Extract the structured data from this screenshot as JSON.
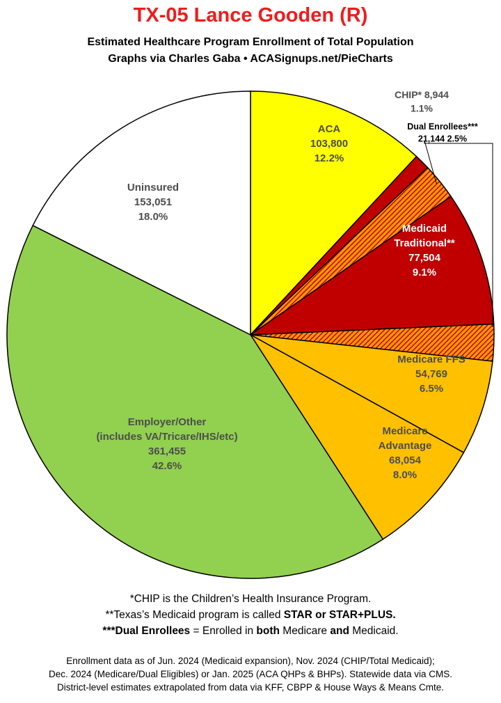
{
  "header": {
    "title": "TX-05 Lance Gooden (R)",
    "subtitle_line1": "Estimated Healthcare Program Enrollment of Total Population",
    "subtitle_line2": "Graphs via Charles Gaba  •  ACASignups.net/PieCharts"
  },
  "chart_data": {
    "type": "pie",
    "title": "TX-05 Lance Gooden (R)",
    "start": "12 o'clock",
    "direction": "clockwise",
    "slices": [
      {
        "id": "aca",
        "label_lines": [
          "ACA"
        ],
        "value": 103800,
        "value_text": "103,800",
        "percent": 12.2,
        "percent_text": "12.2%",
        "color": "#ffff00",
        "text_color": "#4d4d4d"
      },
      {
        "id": "chip",
        "label_lines": [
          "CHIP* 8,944",
          "1.1%"
        ],
        "value": 8944,
        "value_text": "8,944",
        "percent": 1.1,
        "percent_text": "1.1%",
        "color": "#c00000",
        "text_color": "#4d4d4d"
      },
      {
        "id": "dual",
        "label_lines": [
          "Dual Enrollees***",
          "21,144 2.5%"
        ],
        "value": 21144,
        "value_text": "21,144",
        "percent": 2.5,
        "percent_text": "2.5%",
        "color": "#c00000",
        "pattern": "hatched",
        "text_color": "#000000"
      },
      {
        "id": "medicaid",
        "label_lines": [
          "Medicaid",
          "Traditional**"
        ],
        "value": 77504,
        "value_text": "77,504",
        "percent": 9.1,
        "percent_text": "9.1%",
        "color": "#c00000",
        "text_color": "#ffffff"
      },
      {
        "id": "dual_hatch",
        "label_lines": [],
        "value": 21144,
        "value_text": "",
        "percent": 2.5,
        "percent_text": "",
        "color": "#c00000",
        "pattern": "hatched",
        "text_color": "#000000"
      },
      {
        "id": "mcare_ffs",
        "label_lines": [
          "Medicare FFS"
        ],
        "value": 54769,
        "value_text": "54,769",
        "percent": 6.5,
        "percent_text": "6.5%",
        "color": "#ffc000",
        "text_color": "#4d4d4d"
      },
      {
        "id": "mcare_adv",
        "label_lines": [
          "Medicare",
          "Advantage"
        ],
        "value": 68054,
        "value_text": "68,054",
        "percent": 8.0,
        "percent_text": "8.0%",
        "color": "#ffc000",
        "text_color": "#4d4d4d"
      },
      {
        "id": "employer",
        "label_lines": [
          "Employer/Other",
          "(includes VA/Tricare/IHS/etc)"
        ],
        "value": 361455,
        "value_text": "361,455",
        "percent": 42.6,
        "percent_text": "42.6%",
        "color": "#92d050",
        "text_color": "#4d4d4d"
      },
      {
        "id": "uninsured",
        "label_lines": [
          "Uninsured"
        ],
        "value": 153051,
        "value_text": "153,051",
        "percent": 18.0,
        "percent_text": "18.0%",
        "color": "#ffffff",
        "text_color": "#4d4d4d"
      }
    ]
  },
  "notes": {
    "line1": "*CHIP is the Children’s Health Insurance Program.",
    "line2_a": "**Texas’s Medicaid program is called ",
    "line2_b": "STAR or STAR+PLUS.",
    "line3_a": "***Dual Enrollees",
    "line3_b": " = Enrolled in ",
    "line3_c": "both",
    "line3_d": " Medicare ",
    "line3_e": "and",
    "line3_f": " Medicaid."
  },
  "source": {
    "line1": "Enrollment data as of Jun. 2024 (Medicaid expansion), Nov. 2024 (CHIP/Total Medicaid);",
    "line2": "Dec. 2024 (Medicare/Dual Eligibles) or Jan. 2025 (ACA QHPs & BHPs). Statewide data via CMS.",
    "line3": "District-level estimates extrapolated from data via KFF, CBPP & House Ways & Means Cmte."
  }
}
